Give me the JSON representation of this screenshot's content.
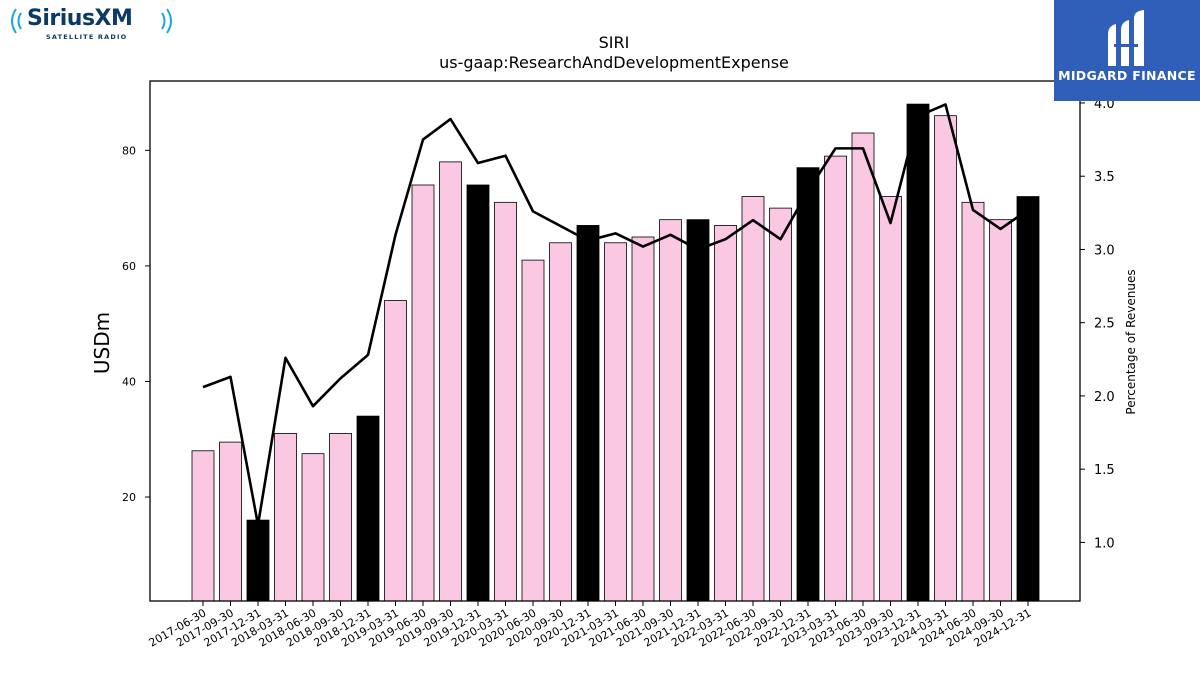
{
  "chart_data": {
    "type": "bar",
    "title": "SIRI",
    "subtitle": "us-gaap:ResearchAndDevelopmentExpense",
    "ylabel": "USDm",
    "y2label": "Percentage of Revenues",
    "categories": [
      "2017-06-30",
      "2017-09-30",
      "2017-12-31",
      "2018-03-31",
      "2018-06-30",
      "2018-09-30",
      "2018-12-31",
      "2019-03-31",
      "2019-06-30",
      "2019-09-30",
      "2019-12-31",
      "2020-03-31",
      "2020-06-30",
      "2020-09-30",
      "2020-12-31",
      "2021-03-31",
      "2021-06-30",
      "2021-09-30",
      "2021-12-31",
      "2022-03-31",
      "2022-06-30",
      "2022-09-30",
      "2022-12-31",
      "2023-03-31",
      "2023-06-30",
      "2023-09-30",
      "2023-12-31",
      "2024-03-31",
      "2024-06-30",
      "2024-09-30",
      "2024-12-31"
    ],
    "series": [
      {
        "values": [
          28,
          29.5,
          16,
          31,
          27.5,
          31,
          34,
          54,
          74,
          78,
          74,
          71,
          61,
          64,
          67,
          64,
          65,
          68,
          68,
          67,
          72,
          70,
          77,
          79,
          83,
          72,
          88,
          86,
          71,
          68,
          72
        ],
        "highlight": [
          false,
          false,
          true,
          false,
          false,
          false,
          true,
          false,
          false,
          false,
          true,
          false,
          false,
          false,
          true,
          false,
          false,
          false,
          true,
          false,
          false,
          false,
          true,
          false,
          false,
          false,
          true,
          false,
          false,
          false,
          true
        ]
      },
      {
        "type": "line",
        "axis": "right",
        "values": [
          2.06,
          2.13,
          1.12,
          2.26,
          1.93,
          2.12,
          2.28,
          3.1,
          3.75,
          3.89,
          3.59,
          3.64,
          3.26,
          3.16,
          3.06,
          3.11,
          3.02,
          3.1,
          3.0,
          3.07,
          3.2,
          3.07,
          3.4,
          3.69,
          3.69,
          3.18,
          3.91,
          3.99,
          3.27,
          3.14,
          3.27
        ]
      }
    ],
    "ylim": [
      2,
      92
    ],
    "y2lim": [
      0.6,
      4.15
    ],
    "yticks": [
      20,
      40,
      60,
      80
    ],
    "y2ticks": [
      "1.0",
      "1.5",
      "2.0",
      "2.5",
      "3.0",
      "3.5",
      "4.0"
    ],
    "colors": {
      "bar": "#fbc8e3",
      "highlight": "#000000",
      "line": "#000000"
    },
    "grid": false
  },
  "logos": {
    "left": {
      "name": "SiriusXM",
      "tagline": "SATELLITE RADIO",
      "color": "#0b3a66",
      "wave_color": "#1aa7e0"
    },
    "right": {
      "name": "MIDGARD FINANCE",
      "bg": "#2f5fb8"
    }
  }
}
